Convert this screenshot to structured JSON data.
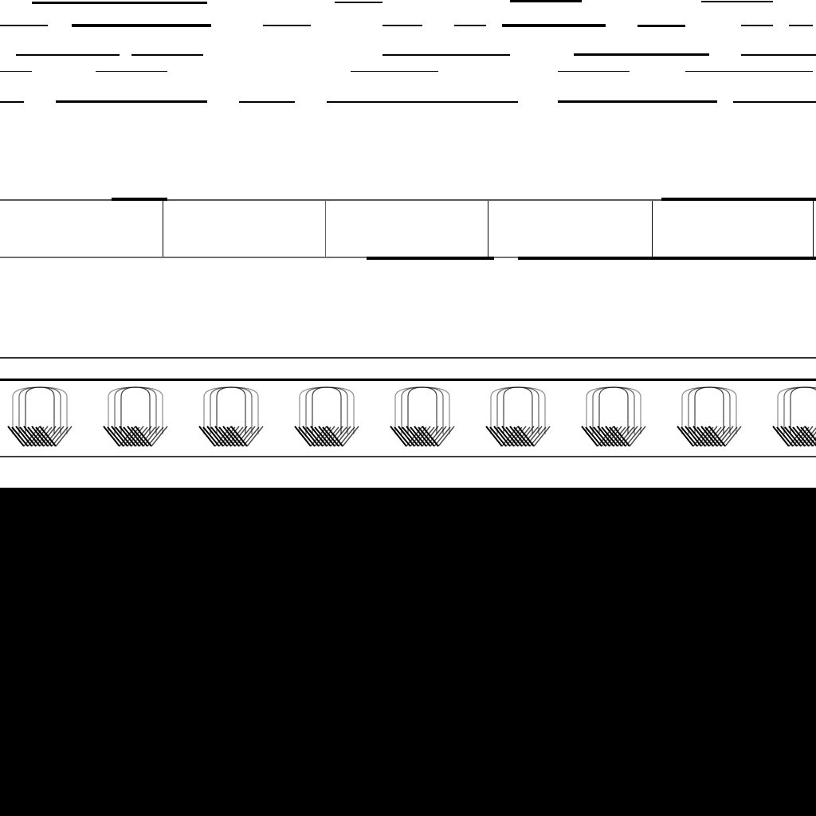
{
  "colors": {
    "background": "#ffffff",
    "ink": "#000000",
    "noise": "#333333"
  },
  "regions": [
    "noise-band-top",
    "empty-white-band",
    "ruled-cells-band",
    "empty-white-band-2",
    "hatched-pattern-band",
    "solid-black-block"
  ],
  "note_visible_text": ""
}
